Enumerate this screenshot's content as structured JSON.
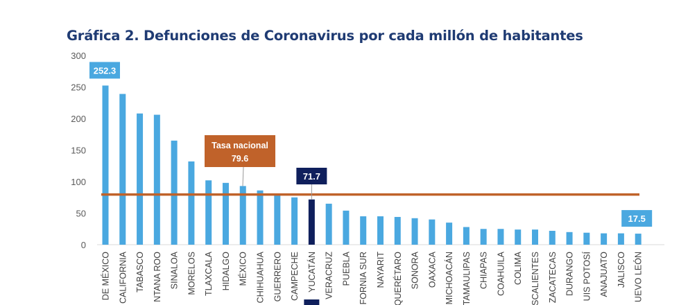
{
  "chart_data": {
    "type": "bar",
    "title": "Gráfica 2. Defunciones de Coronavirus por cada millón de habitantes",
    "xlabel": "",
    "ylabel": "",
    "ylim": [
      0,
      300
    ],
    "yticks": [
      0,
      50,
      100,
      150,
      200,
      250,
      300
    ],
    "grid": false,
    "categories": [
      "DE MÉXICO",
      "CALIFORNIA",
      "TABASCO",
      "NTANA ROO",
      "SINALOA",
      "MORELOS",
      "TLAXCALA",
      "HIDALGO",
      "MÉXICO",
      "CHIHUAHUA",
      "GUERRERO",
      "CAMPECHE",
      "YUCATÁN",
      "VERACRUZ",
      "PUEBLA",
      "FORNIA SUR",
      "NAYARIT",
      "QUERÉTARO",
      "SONORA",
      "OAXACA",
      "MICHOACÁN",
      "TAMAULIPAS",
      "CHIAPAS",
      "COAHUILA",
      "COLIMA",
      "SCALIENTES",
      "ZACATECAS",
      "DURANGO",
      "UIS POTOSÍ",
      "ANAJUATO",
      "JALISCO",
      "UEVO LEÓN"
    ],
    "values": [
      252.3,
      239,
      208,
      206,
      165,
      132,
      102,
      98,
      93,
      86,
      78,
      75,
      71.7,
      65,
      54,
      45,
      45,
      44,
      42,
      40,
      35,
      28,
      25,
      25,
      24,
      24,
      22,
      20,
      19,
      18,
      18,
      17.5
    ],
    "highlight_index": 12,
    "data_labels": [
      {
        "index": 0,
        "text": "252.3"
      },
      {
        "index": 12,
        "text": "71.7"
      },
      {
        "index": 31,
        "text": "17.5"
      }
    ],
    "reference_line": {
      "value": 79.6,
      "label": "Tasa nacional",
      "value_text": "79.6"
    },
    "colors": {
      "bar": "#4aa8e0",
      "highlight": "#0f1f5c",
      "reference": "#c0622a",
      "title": "#1f3b73",
      "axis_text": "#595959"
    }
  }
}
